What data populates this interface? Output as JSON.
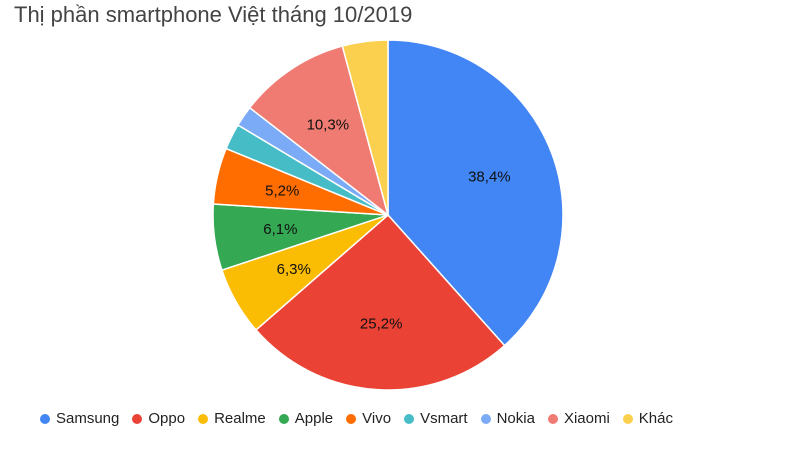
{
  "chart_data": {
    "type": "pie",
    "title": "Thị phần smartphone Việt tháng 10/2019",
    "legend_position": "bottom",
    "slices": [
      {
        "name": "Samsung",
        "value": 38.4,
        "label": "38,4%",
        "color": "#4285f4"
      },
      {
        "name": "Oppo",
        "value": 25.2,
        "label": "25,2%",
        "color": "#ea4335"
      },
      {
        "name": "Realme",
        "value": 6.3,
        "label": "6,3%",
        "color": "#fbbc04"
      },
      {
        "name": "Apple",
        "value": 6.1,
        "label": "6,1%",
        "color": "#34a853"
      },
      {
        "name": "Vivo",
        "value": 5.2,
        "label": "5,2%",
        "color": "#ff6d01"
      },
      {
        "name": "Vsmart",
        "value": 2.4,
        "label": "",
        "color": "#46bdc6"
      },
      {
        "name": "Nokia",
        "value": 1.9,
        "label": "",
        "color": "#7baaf7"
      },
      {
        "name": "Xiaomi",
        "value": 10.3,
        "label": "10,3%",
        "color": "#f07b72"
      },
      {
        "name": "Khác",
        "value": 4.2,
        "label": "",
        "color": "#fcd04f"
      }
    ]
  }
}
